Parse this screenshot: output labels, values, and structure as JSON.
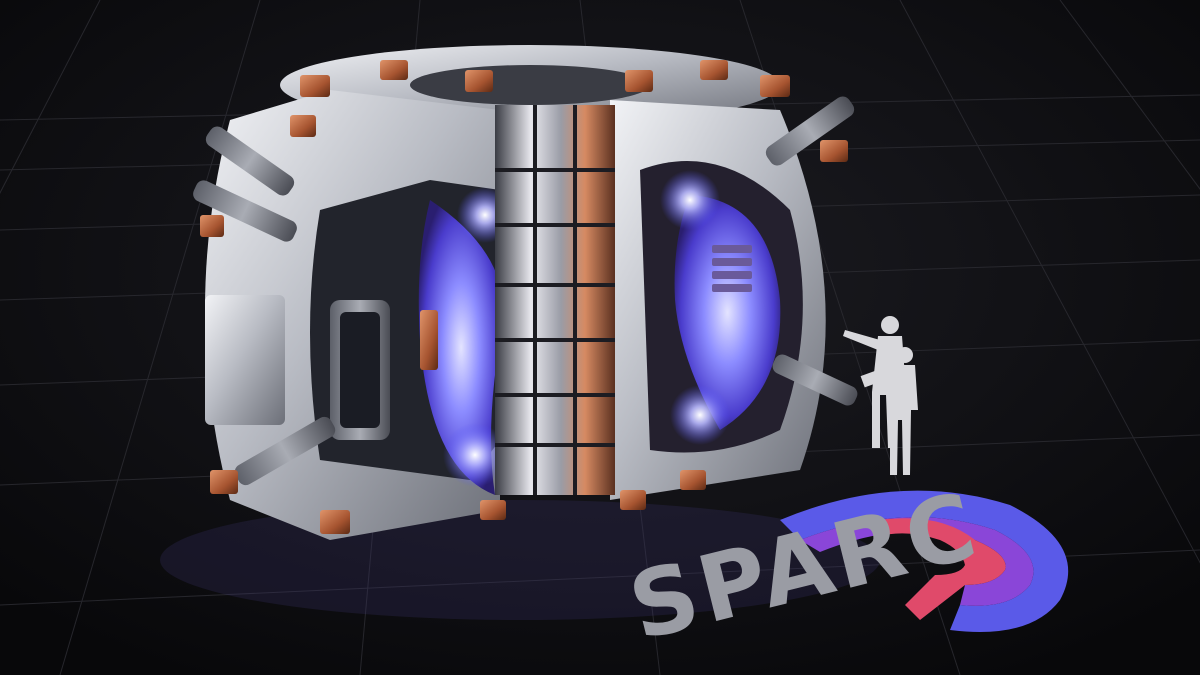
{
  "logo": {
    "text": "SPARC",
    "colors": {
      "outer_ring": "#5a5ae8",
      "middle_ring": "#8a46d8",
      "inner_ring": "#e04a6a",
      "lettering": "#9a9ca4"
    }
  },
  "scene": {
    "background": "#0d0d10",
    "grid_line": "#2a2a30",
    "metal": "#c8ccd4",
    "copper": "#b0603a",
    "plasma_glow": "#8a8cff"
  }
}
